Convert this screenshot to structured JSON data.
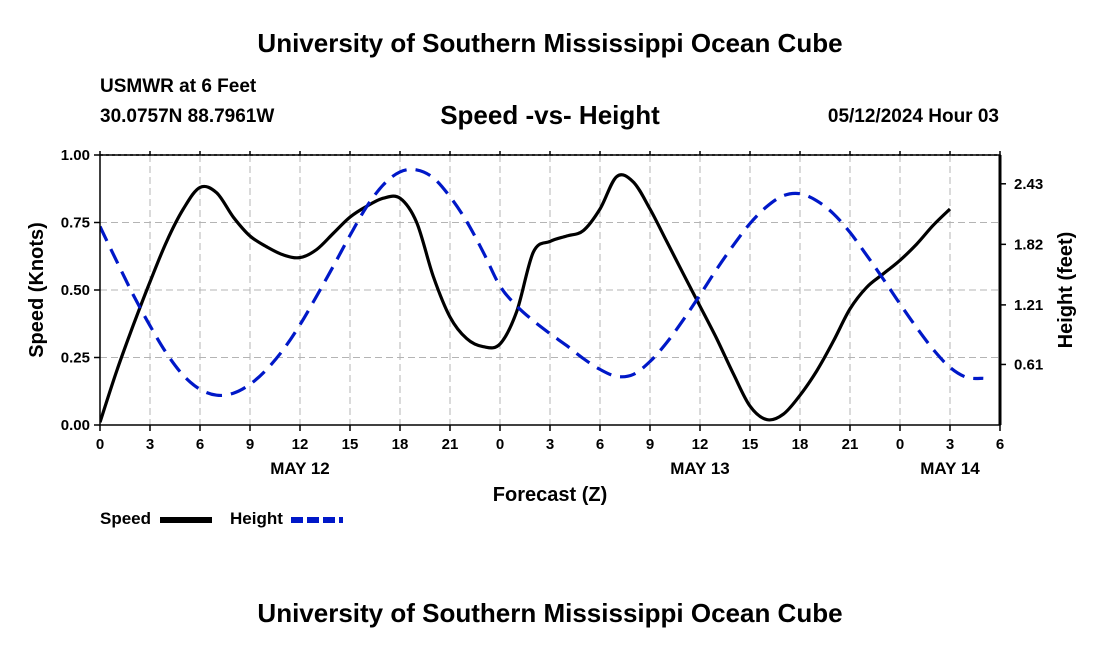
{
  "header": {
    "title": "University of Southern Mississippi Ocean Cube",
    "station_name": "USMWR at 6 Feet",
    "station_coords": "30.0757N  88.7961W",
    "date": "05/12/2024 Hour 03"
  },
  "footer": {
    "title": "University of Southern Mississippi Ocean Cube"
  },
  "chart_data": {
    "type": "line",
    "title": "Speed -vs- Height",
    "xlabel": "Forecast (Z)",
    "ylabel": "Speed (Knots)",
    "y2label": "Height (feet)",
    "xlim": [
      0,
      54
    ],
    "ylim": [
      0,
      1
    ],
    "y2lim": [
      0,
      2.72
    ],
    "x_ticks": [
      0,
      3,
      6,
      9,
      12,
      15,
      18,
      21,
      24,
      27,
      30,
      33,
      36,
      39,
      42,
      45,
      48,
      51,
      54
    ],
    "x_tick_labels": [
      "0",
      "3",
      "6",
      "9",
      "12",
      "15",
      "18",
      "21",
      "0",
      "3",
      "6",
      "9",
      "12",
      "15",
      "18",
      "21",
      "0",
      "3",
      "6"
    ],
    "date_labels": [
      {
        "x": 12,
        "label": "MAY 12"
      },
      {
        "x": 36,
        "label": "MAY 13"
      },
      {
        "x": 51,
        "label": "MAY 14"
      }
    ],
    "y_ticks": [
      0,
      0.25,
      0.5,
      0.75,
      1.0
    ],
    "y_tick_labels": [
      "0.00",
      "0.25",
      "0.50",
      "0.75",
      "1.00"
    ],
    "y2_ticks": [
      0.61,
      1.21,
      1.82,
      2.43
    ],
    "y2_tick_labels": [
      "0.61",
      "1.21",
      "1.82",
      "2.43"
    ],
    "grid": true,
    "legend_position": "bottom-left",
    "series": [
      {
        "name": "Speed",
        "axis": "left",
        "color": "#000000",
        "dash": "solid",
        "points": [
          [
            0,
            0.01
          ],
          [
            1,
            0.2
          ],
          [
            2,
            0.37
          ],
          [
            3,
            0.53
          ],
          [
            4,
            0.68
          ],
          [
            5,
            0.8
          ],
          [
            6,
            0.88
          ],
          [
            7,
            0.86
          ],
          [
            8,
            0.77
          ],
          [
            9,
            0.7
          ],
          [
            10,
            0.66
          ],
          [
            11,
            0.63
          ],
          [
            12,
            0.62
          ],
          [
            13,
            0.65
          ],
          [
            14,
            0.71
          ],
          [
            15,
            0.77
          ],
          [
            16,
            0.81
          ],
          [
            17,
            0.84
          ],
          [
            18,
            0.84
          ],
          [
            19,
            0.75
          ],
          [
            20,
            0.55
          ],
          [
            21,
            0.4
          ],
          [
            22,
            0.32
          ],
          [
            23,
            0.29
          ],
          [
            24,
            0.3
          ],
          [
            25,
            0.42
          ],
          [
            26,
            0.64
          ],
          [
            27,
            0.68
          ],
          [
            28,
            0.7
          ],
          [
            29,
            0.72
          ],
          [
            30,
            0.8
          ],
          [
            31,
            0.92
          ],
          [
            32,
            0.9
          ],
          [
            33,
            0.8
          ],
          [
            34,
            0.68
          ],
          [
            35,
            0.56
          ],
          [
            36,
            0.44
          ],
          [
            37,
            0.32
          ],
          [
            38,
            0.19
          ],
          [
            39,
            0.07
          ],
          [
            40,
            0.02
          ],
          [
            41,
            0.04
          ],
          [
            42,
            0.11
          ],
          [
            43,
            0.2
          ],
          [
            44,
            0.31
          ],
          [
            45,
            0.43
          ],
          [
            46,
            0.51
          ],
          [
            47,
            0.56
          ],
          [
            48,
            0.61
          ],
          [
            49,
            0.67
          ],
          [
            50,
            0.74
          ],
          [
            51,
            0.8
          ]
        ]
      },
      {
        "name": "Height",
        "axis": "right",
        "color": "#0018c8",
        "dash": "dashed",
        "points": [
          [
            0,
            2.0
          ],
          [
            1,
            1.65
          ],
          [
            2,
            1.31
          ],
          [
            3,
            1.0
          ],
          [
            4,
            0.72
          ],
          [
            5,
            0.5
          ],
          [
            6,
            0.36
          ],
          [
            7,
            0.3
          ],
          [
            8,
            0.32
          ],
          [
            9,
            0.41
          ],
          [
            10,
            0.56
          ],
          [
            11,
            0.76
          ],
          [
            12,
            1.01
          ],
          [
            13,
            1.3
          ],
          [
            14,
            1.6
          ],
          [
            15,
            1.91
          ],
          [
            16,
            2.2
          ],
          [
            17,
            2.42
          ],
          [
            18,
            2.55
          ],
          [
            19,
            2.57
          ],
          [
            20,
            2.49
          ],
          [
            21,
            2.3
          ],
          [
            22,
            2.05
          ],
          [
            23,
            1.74
          ],
          [
            24,
            1.4
          ],
          [
            25,
            1.2
          ],
          [
            26,
            1.05
          ],
          [
            27,
            0.92
          ],
          [
            28,
            0.8
          ],
          [
            29,
            0.67
          ],
          [
            30,
            0.56
          ],
          [
            31,
            0.49
          ],
          [
            32,
            0.51
          ],
          [
            33,
            0.64
          ],
          [
            34,
            0.83
          ],
          [
            35,
            1.06
          ],
          [
            36,
            1.31
          ],
          [
            37,
            1.57
          ],
          [
            38,
            1.81
          ],
          [
            39,
            2.03
          ],
          [
            40,
            2.2
          ],
          [
            41,
            2.31
          ],
          [
            42,
            2.33
          ],
          [
            43,
            2.26
          ],
          [
            44,
            2.13
          ],
          [
            45,
            1.94
          ],
          [
            46,
            1.71
          ],
          [
            47,
            1.47
          ],
          [
            48,
            1.22
          ],
          [
            49,
            0.98
          ],
          [
            50,
            0.76
          ],
          [
            51,
            0.58
          ],
          [
            52,
            0.48
          ],
          [
            53,
            0.47
          ]
        ]
      }
    ]
  }
}
